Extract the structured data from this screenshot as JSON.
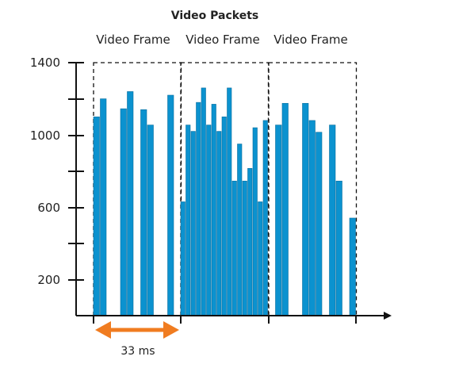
{
  "chart_data": {
    "type": "bar",
    "title": "Video Packets",
    "frame_labels": [
      "Video Frame",
      "Video Frame",
      "Video Frame"
    ],
    "y_tick_labels": [
      "1400",
      "1000",
      "600",
      "200"
    ],
    "y_ticks": [
      1400,
      1000,
      600,
      200
    ],
    "ylim": [
      0,
      1400
    ],
    "duration_label": "33 ms",
    "grid": false,
    "colors": {
      "bar": "#0b92cf",
      "bar_edge": "#0a6e9e",
      "arrow": "#f07c20",
      "axis": "#111111"
    },
    "frames": [
      {
        "values": [
          1100,
          1200,
          0,
          0,
          1145,
          1240,
          0,
          1140,
          1055,
          0,
          0,
          1220,
          0
        ]
      },
      {
        "values": [
          630,
          1055,
          1020,
          1180,
          1260,
          1055,
          1170,
          1020,
          1100,
          1260,
          745,
          950,
          745,
          815,
          1040,
          630,
          1080
        ]
      },
      {
        "values": [
          0,
          1055,
          1175,
          0,
          0,
          1175,
          1080,
          1015,
          0,
          1055,
          745,
          0,
          540
        ]
      }
    ]
  }
}
